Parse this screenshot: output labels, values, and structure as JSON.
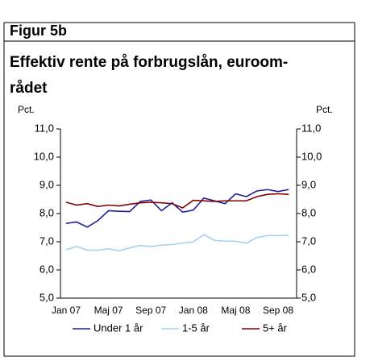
{
  "header": {
    "title": "Figur 5b"
  },
  "chart_data": {
    "type": "line",
    "title_lines": [
      "Effektiv rente på forbrugslån, euroom-",
      "rådet"
    ],
    "y_axis_label": "Pct.",
    "y2_axis_label": "Pct.",
    "categories": [
      "Jan 07",
      null,
      null,
      null,
      "Maj 07",
      null,
      null,
      null,
      "Sep 07",
      null,
      null,
      null,
      "Jan 08",
      null,
      null,
      null,
      "Maj 08",
      null,
      null,
      null,
      "Sep 08",
      null
    ],
    "ylim": [
      5,
      11
    ],
    "yticks": [
      {
        "value": 5,
        "label": "5,0"
      },
      {
        "value": 6,
        "label": "6,0"
      },
      {
        "value": 7,
        "label": "7,0"
      },
      {
        "value": 8,
        "label": "8,0"
      },
      {
        "value": 9,
        "label": "9,0"
      },
      {
        "value": 10,
        "label": "10,0"
      },
      {
        "value": 11,
        "label": "11,0"
      }
    ],
    "y2lim": [
      5,
      11
    ],
    "y2ticks": [
      {
        "value": 5,
        "label": "5,0"
      },
      {
        "value": 6,
        "label": "6,0"
      },
      {
        "value": 7,
        "label": "7,0"
      },
      {
        "value": 8,
        "label": "8,0"
      },
      {
        "value": 9,
        "label": "9,0"
      },
      {
        "value": 10,
        "label": "10,0"
      },
      {
        "value": 11,
        "label": "11,0"
      }
    ],
    "legend": "bottom",
    "series": [
      {
        "name": "Under 1 år",
        "color": "#1f1f9a",
        "values": [
          7.65,
          7.7,
          7.52,
          7.75,
          8.1,
          8.08,
          8.07,
          8.43,
          8.48,
          8.1,
          8.38,
          8.05,
          8.12,
          8.55,
          8.45,
          8.35,
          8.7,
          8.6,
          8.8,
          8.85,
          8.78,
          8.85
        ]
      },
      {
        "name": "1-5 år",
        "color": "#a6d2f0",
        "values": [
          6.72,
          6.83,
          6.7,
          6.7,
          6.75,
          6.68,
          6.78,
          6.87,
          6.83,
          6.88,
          6.9,
          6.95,
          7.0,
          7.25,
          7.05,
          7.02,
          7.02,
          6.95,
          7.15,
          7.22,
          7.22,
          7.23
        ]
      },
      {
        "name": "5+ år",
        "color": "#800000",
        "values": [
          8.4,
          8.3,
          8.35,
          8.25,
          8.3,
          8.27,
          8.33,
          8.38,
          8.4,
          8.38,
          8.35,
          8.2,
          8.47,
          8.45,
          8.43,
          8.45,
          8.45,
          8.45,
          8.6,
          8.68,
          8.7,
          8.68
        ]
      }
    ]
  }
}
